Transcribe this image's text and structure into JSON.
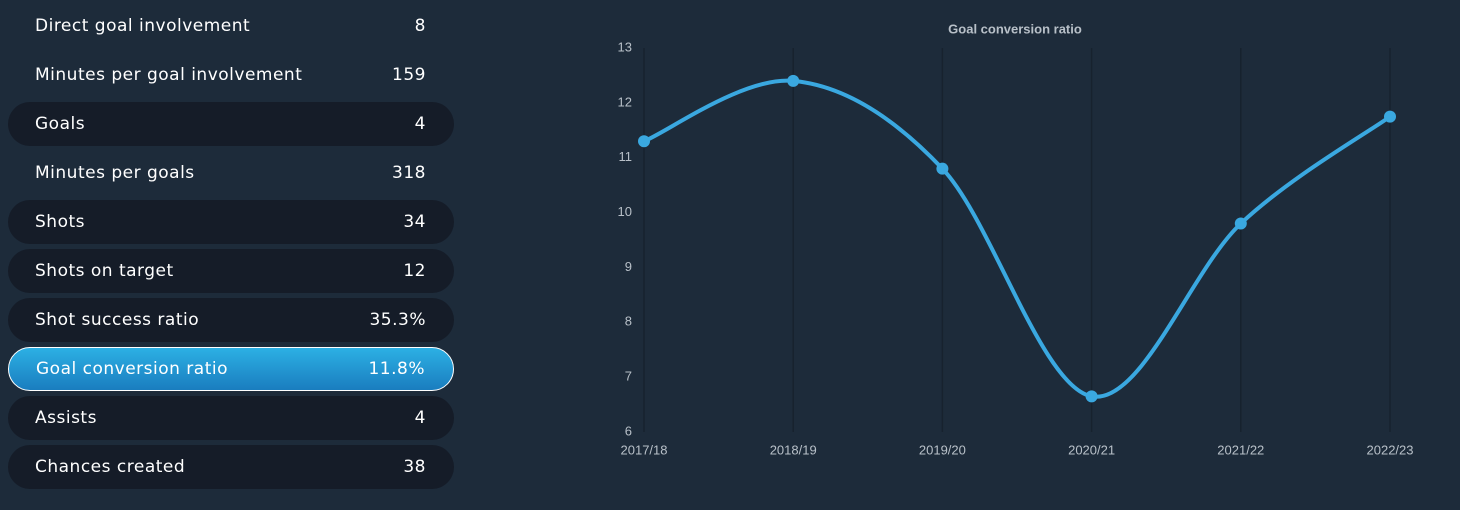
{
  "stats": {
    "rows": [
      {
        "label": "Direct goal involvement",
        "value": "8"
      },
      {
        "label": "Minutes per goal involvement",
        "value": "159"
      },
      {
        "label": "Goals",
        "value": "4"
      },
      {
        "label": "Minutes per goals",
        "value": "318"
      },
      {
        "label": "Shots",
        "value": "34"
      },
      {
        "label": "Shots on target",
        "value": "12"
      },
      {
        "label": "Shot success ratio",
        "value": "35.3%"
      },
      {
        "label": "Goal conversion ratio",
        "value": "11.8%",
        "selected": true
      },
      {
        "label": "Assists",
        "value": "4"
      },
      {
        "label": "Chances created",
        "value": "38"
      }
    ]
  },
  "chart_data": {
    "type": "line",
    "title": "Goal conversion ratio",
    "categories": [
      "2017/18",
      "2018/19",
      "2019/20",
      "2020/21",
      "2021/22",
      "2022/23"
    ],
    "values": [
      11.3,
      12.4,
      10.8,
      6.65,
      9.8,
      11.75
    ],
    "color": "#3aa8e0",
    "smooth": true,
    "grid": true,
    "ylim": [
      6,
      13
    ],
    "yticks": [
      6,
      7,
      8,
      9,
      10,
      11,
      12,
      13
    ]
  }
}
